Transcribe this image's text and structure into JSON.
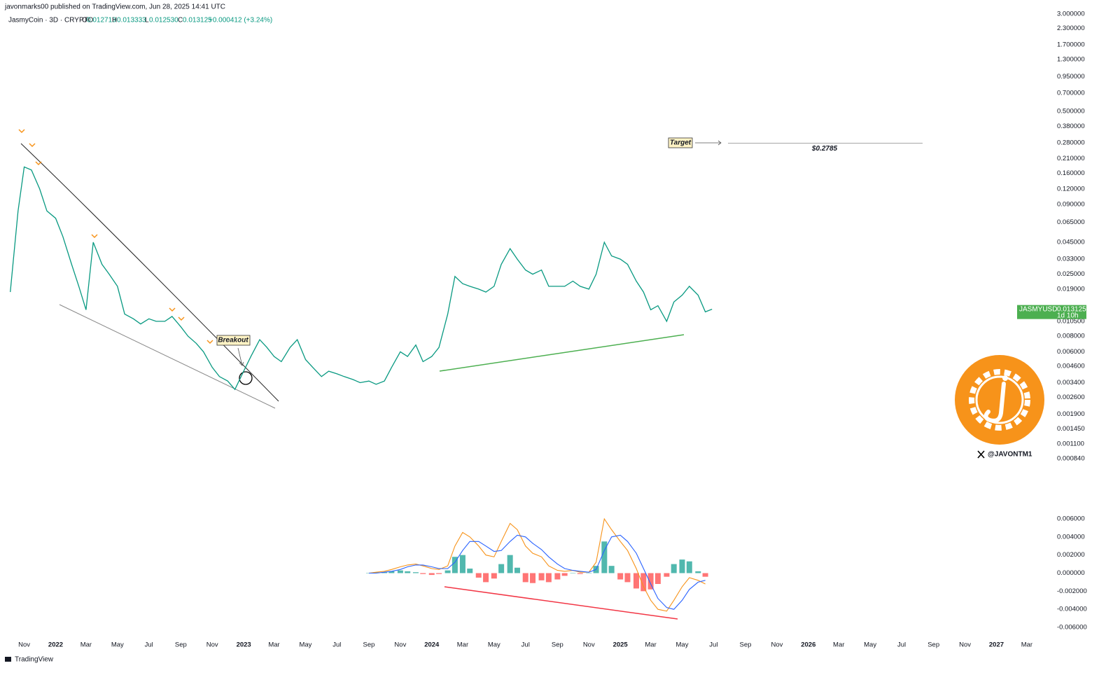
{
  "header": {
    "publisher": "javonmarks00 published on TradingView.com, Jun 28, 2025 14:41 UTC",
    "footer": "TradingView"
  },
  "ohlc": {
    "o_label": "O",
    "o": "0.012713",
    "h_label": "H",
    "h": "0.013333",
    "l_label": "L",
    "l": "0.012530",
    "c_label": "C",
    "c": "0.013125",
    "change": "+0.000412 (+3.24%)"
  },
  "price_tag": {
    "symbol": "JASMYUSD",
    "price": 0.013125,
    "countdown": "1d 10h"
  },
  "annotations": {
    "target_label": "Target",
    "target": 0.2785,
    "target_value_label": "$0.2785",
    "breakout": "Breakout"
  },
  "watermark": {
    "handle": "@JAVONTM1"
  },
  "chart_data": [
    {
      "type": "line",
      "title": "JasmyCoin · 3D · CRYPTO",
      "log_scale": true,
      "color": "#089981",
      "xlim": [
        "2021-09-15",
        "2027-04-15"
      ],
      "xticks": [
        {
          "value": "2021-11-01",
          "label": "Nov"
        },
        {
          "value": "2022-01-01",
          "label": "2022"
        },
        {
          "value": "2022-03-01",
          "label": "Mar"
        },
        {
          "value": "2022-05-01",
          "label": "May"
        },
        {
          "value": "2022-07-01",
          "label": "Jul"
        },
        {
          "value": "2022-09-01",
          "label": "Sep"
        },
        {
          "value": "2022-11-01",
          "label": "Nov"
        },
        {
          "value": "2023-01-01",
          "label": "2023"
        },
        {
          "value": "2023-03-01",
          "label": "Mar"
        },
        {
          "value": "2023-05-01",
          "label": "May"
        },
        {
          "value": "2023-07-01",
          "label": "Jul"
        },
        {
          "value": "2023-09-01",
          "label": "Sep"
        },
        {
          "value": "2023-11-01",
          "label": "Nov"
        },
        {
          "value": "2024-01-01",
          "label": "2024"
        },
        {
          "value": "2024-03-01",
          "label": "Mar"
        },
        {
          "value": "2024-05-01",
          "label": "May"
        },
        {
          "value": "2024-07-01",
          "label": "Jul"
        },
        {
          "value": "2024-09-01",
          "label": "Sep"
        },
        {
          "value": "2024-11-01",
          "label": "Nov"
        },
        {
          "value": "2025-01-01",
          "label": "2025"
        },
        {
          "value": "2025-03-01",
          "label": "Mar"
        },
        {
          "value": "2025-05-01",
          "label": "May"
        },
        {
          "value": "2025-07-01",
          "label": "Jul"
        },
        {
          "value": "2025-09-01",
          "label": "Sep"
        },
        {
          "value": "2025-11-01",
          "label": "Nov"
        },
        {
          "value": "2026-01-01",
          "label": "2026"
        },
        {
          "value": "2026-03-01",
          "label": "Mar"
        },
        {
          "value": "2026-05-01",
          "label": "May"
        },
        {
          "value": "2026-07-01",
          "label": "Jul"
        },
        {
          "value": "2026-09-01",
          "label": "Sep"
        },
        {
          "value": "2026-11-01",
          "label": "Nov"
        },
        {
          "value": "2027-01-01",
          "label": "2027"
        },
        {
          "value": "2027-03-01",
          "label": "Mar"
        }
      ],
      "ylim": [
        0.00084,
        3
      ],
      "yticks": [
        {
          "value": 3,
          "label": "3.000000"
        },
        {
          "value": 2.3,
          "label": "2.300000"
        },
        {
          "value": 1.7,
          "label": "1.700000"
        },
        {
          "value": 1.3,
          "label": "1.300000"
        },
        {
          "value": 0.95,
          "label": "0.950000"
        },
        {
          "value": 0.7,
          "label": "0.700000"
        },
        {
          "value": 0.5,
          "label": "0.500000"
        },
        {
          "value": 0.38,
          "label": "0.380000"
        },
        {
          "value": 0.28,
          "label": "0.280000"
        },
        {
          "value": 0.21,
          "label": "0.210000"
        },
        {
          "value": 0.16,
          "label": "0.160000"
        },
        {
          "value": 0.12,
          "label": "0.120000"
        },
        {
          "value": 0.09,
          "label": "0.090000"
        },
        {
          "value": 0.065,
          "label": "0.065000"
        },
        {
          "value": 0.045,
          "label": "0.045000"
        },
        {
          "value": 0.033,
          "label": "0.033000"
        },
        {
          "value": 0.025,
          "label": "0.025000"
        },
        {
          "value": 0.019,
          "label": "0.019000"
        },
        {
          "value": 0.0105,
          "label": "0.010500"
        },
        {
          "value": 0.008,
          "label": "0.008000"
        },
        {
          "value": 0.006,
          "label": "0.006000"
        },
        {
          "value": 0.0046,
          "label": "0.004600"
        },
        {
          "value": 0.0034,
          "label": "0.003400"
        },
        {
          "value": 0.0026,
          "label": "0.002600"
        },
        {
          "value": 0.0019,
          "label": "0.001900"
        },
        {
          "value": 0.00145,
          "label": "0.001450"
        },
        {
          "value": 0.0011,
          "label": "0.001100"
        },
        {
          "value": 0.00084,
          "label": "0.000840"
        }
      ],
      "x": [
        "2021-10-05",
        "2021-10-20",
        "2021-11-01",
        "2021-11-15",
        "2021-12-01",
        "2021-12-15",
        "2022-01-01",
        "2022-01-15",
        "2022-02-01",
        "2022-02-15",
        "2022-03-01",
        "2022-03-15",
        "2022-04-01",
        "2022-04-15",
        "2022-05-01",
        "2022-05-15",
        "2022-06-01",
        "2022-06-15",
        "2022-07-01",
        "2022-07-15",
        "2022-08-01",
        "2022-08-15",
        "2022-09-01",
        "2022-09-15",
        "2022-10-01",
        "2022-10-15",
        "2022-11-01",
        "2022-11-15",
        "2022-12-01",
        "2022-12-15",
        "2023-01-01",
        "2023-01-15",
        "2023-02-01",
        "2023-02-15",
        "2023-03-01",
        "2023-03-15",
        "2023-04-01",
        "2023-04-15",
        "2023-05-01",
        "2023-05-15",
        "2023-06-01",
        "2023-06-15",
        "2023-07-01",
        "2023-07-15",
        "2023-08-01",
        "2023-08-15",
        "2023-09-01",
        "2023-09-15",
        "2023-10-01",
        "2023-10-15",
        "2023-11-01",
        "2023-11-15",
        "2023-12-01",
        "2023-12-15",
        "2024-01-01",
        "2024-01-15",
        "2024-02-01",
        "2024-02-15",
        "2024-03-01",
        "2024-03-15",
        "2024-04-01",
        "2024-04-15",
        "2024-05-01",
        "2024-05-15",
        "2024-06-01",
        "2024-06-15",
        "2024-07-01",
        "2024-07-15",
        "2024-08-01",
        "2024-08-15",
        "2024-09-01",
        "2024-09-15",
        "2024-10-01",
        "2024-10-15",
        "2024-11-01",
        "2024-11-15",
        "2024-12-01",
        "2024-12-15",
        "2025-01-01",
        "2025-01-15",
        "2025-02-01",
        "2025-02-15",
        "2025-03-01",
        "2025-03-15",
        "2025-04-01",
        "2025-04-15",
        "2025-05-01",
        "2025-05-15",
        "2025-06-01",
        "2025-06-15",
        "2025-06-28"
      ],
      "values": [
        0.018,
        0.08,
        0.18,
        0.17,
        0.12,
        0.08,
        0.07,
        0.05,
        0.03,
        0.02,
        0.013,
        0.045,
        0.03,
        0.025,
        0.02,
        0.012,
        0.011,
        0.01,
        0.011,
        0.0105,
        0.0105,
        0.0115,
        0.0095,
        0.008,
        0.007,
        0.006,
        0.0045,
        0.0038,
        0.0035,
        0.003,
        0.0042,
        0.0055,
        0.0075,
        0.0065,
        0.0055,
        0.005,
        0.0065,
        0.0075,
        0.0052,
        0.0045,
        0.0038,
        0.0042,
        0.004,
        0.0038,
        0.0036,
        0.0034,
        0.0035,
        0.0033,
        0.0035,
        0.0045,
        0.006,
        0.0055,
        0.0068,
        0.005,
        0.0055,
        0.0065,
        0.012,
        0.024,
        0.021,
        0.02,
        0.019,
        0.018,
        0.02,
        0.03,
        0.04,
        0.033,
        0.027,
        0.025,
        0.027,
        0.02,
        0.02,
        0.02,
        0.022,
        0.02,
        0.019,
        0.025,
        0.045,
        0.035,
        0.033,
        0.03,
        0.022,
        0.018,
        0.013,
        0.014,
        0.0105,
        0.015,
        0.017,
        0.02,
        0.017,
        0.0125,
        0.013125
      ]
    },
    {
      "type": "macd",
      "ylim": [
        -0.006,
        0.006
      ],
      "yticks": [
        {
          "value": 0.006,
          "label": "0.006000"
        },
        {
          "value": 0.004,
          "label": "0.004000"
        },
        {
          "value": 0.002,
          "label": "0.002000"
        },
        {
          "value": 0,
          "label": "0.000000"
        },
        {
          "value": -0.002,
          "label": "-0.002000"
        },
        {
          "value": -0.004,
          "label": "-0.004000"
        },
        {
          "value": -0.006,
          "label": "-0.006000"
        }
      ],
      "x": [
        "2023-09-01",
        "2023-09-15",
        "2023-10-01",
        "2023-10-15",
        "2023-11-01",
        "2023-11-15",
        "2023-12-01",
        "2023-12-15",
        "2024-01-01",
        "2024-01-15",
        "2024-02-01",
        "2024-02-15",
        "2024-03-01",
        "2024-03-15",
        "2024-04-01",
        "2024-04-15",
        "2024-05-01",
        "2024-05-15",
        "2024-06-01",
        "2024-06-15",
        "2024-07-01",
        "2024-07-15",
        "2024-08-01",
        "2024-08-15",
        "2024-09-01",
        "2024-09-15",
        "2024-10-01",
        "2024-10-15",
        "2024-11-01",
        "2024-11-15",
        "2024-12-01",
        "2024-12-15",
        "2025-01-01",
        "2025-01-15",
        "2025-02-01",
        "2025-02-15",
        "2025-03-01",
        "2025-03-15",
        "2025-04-01",
        "2025-04-15",
        "2025-05-01",
        "2025-05-15",
        "2025-06-01",
        "2025-06-15"
      ],
      "histogram": {
        "up_color": "#26a69a",
        "down_color": "#ff5252",
        "values": [
          0,
          0.0001,
          0.0001,
          0.0002,
          0.0003,
          0.0002,
          0.0001,
          -0.0001,
          -0.0002,
          -0.0001,
          0.0003,
          0.0018,
          0.002,
          0.0005,
          -0.0005,
          -0.001,
          -0.0006,
          0.001,
          0.002,
          0.0006,
          -0.001,
          -0.0011,
          -0.0008,
          -0.001,
          -0.0007,
          -0.0003,
          0,
          -0.0001,
          0,
          0.0008,
          0.0035,
          0.0008,
          -0.0007,
          -0.001,
          -0.0017,
          -0.002,
          -0.0018,
          -0.0012,
          -0.0004,
          0.001,
          0.0015,
          0.0013,
          0.0002,
          -0.0004
        ]
      },
      "series": [
        {
          "color": "#f7931a",
          "values": [
            0,
            0.0001,
            0.0002,
            0.0004,
            0.0007,
            0.0009,
            0.001,
            0.0008,
            0.0005,
            0.0004,
            0.0008,
            0.003,
            0.0045,
            0.004,
            0.003,
            0.002,
            0.0018,
            0.0035,
            0.0055,
            0.0048,
            0.003,
            0.0022,
            0.0018,
            0.0008,
            0.0003,
            0.0002,
            0.0003,
            0.0001,
            0.0001,
            0.0012,
            0.006,
            0.0048,
            0.0035,
            0.0025,
            0.0005,
            -0.0015,
            -0.003,
            -0.004,
            -0.0042,
            -0.003,
            -0.0015,
            -0.0005,
            -0.0008,
            -0.0012
          ]
        },
        {
          "color": "#2962ff",
          "values": [
            0,
            0,
            0.0001,
            0.0002,
            0.0004,
            0.0007,
            0.0009,
            0.0009,
            0.0007,
            0.0005,
            0.0005,
            0.0012,
            0.0025,
            0.0035,
            0.0035,
            0.003,
            0.0024,
            0.0025,
            0.0035,
            0.0042,
            0.004,
            0.0033,
            0.0026,
            0.0018,
            0.001,
            0.0005,
            0.0003,
            0.0002,
            0.0001,
            0.0004,
            0.0025,
            0.004,
            0.0042,
            0.0035,
            0.0022,
            0.0005,
            -0.0012,
            -0.0028,
            -0.0038,
            -0.004,
            -0.003,
            -0.0018,
            -0.001,
            -0.0008
          ]
        }
      ]
    }
  ]
}
